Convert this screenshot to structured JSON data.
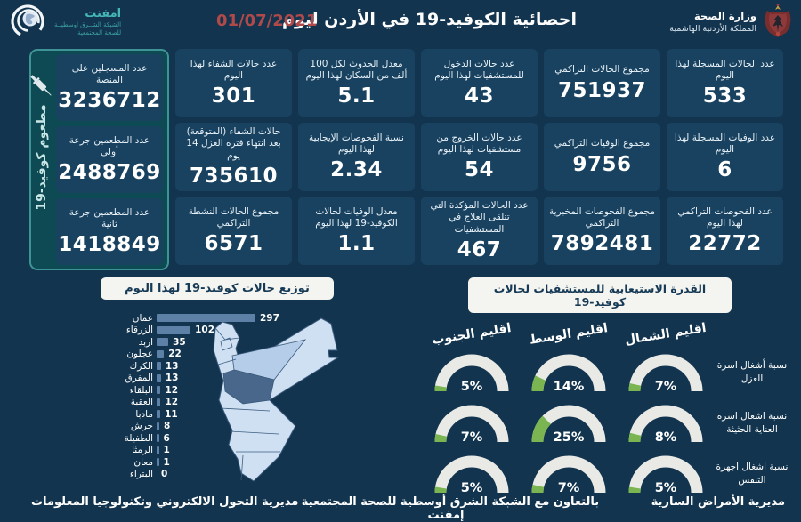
{
  "accent_colors": {
    "background": "#12344e",
    "card": "#18425f",
    "vaccine_panel_bg": "#0d4a53",
    "vaccine_panel_border": "#3e9494",
    "bar": "#5d80a6",
    "gauge_green": "#7ab551",
    "gauge_track": "#e9eae6",
    "date_red": "#b04a4a",
    "emphnet_teal": "#45b5b5"
  },
  "header": {
    "title": "احصائية الكوفيد-19 في الأردن ليوم",
    "date": "01/07/2021",
    "ministry": {
      "name": "وزارة الصحة",
      "country": "المملكة الأردنية الهاشمية"
    },
    "emphnet": {
      "name": "امفنت",
      "line1": "الشبكة الشــرق اوسطيــة",
      "line2": "للصحة المجتمعية"
    }
  },
  "vaccine_panel": {
    "vertical_label": "مطعوم كوفيد-19",
    "cards": [
      {
        "label": "عدد المسجلين على المنصة",
        "value": "3236712"
      },
      {
        "label": "عدد المطعمين جرعة أولى",
        "value": "2488769"
      },
      {
        "label": "عدد المطعمين جرعة ثانية",
        "value": "1418849"
      }
    ]
  },
  "stats": {
    "columns": [
      {
        "cards": [
          {
            "label": "عدد الحالات المسجلة لهذا اليوم",
            "value": "533"
          },
          {
            "label": "عدد الوفيات المسجلة لهذا اليوم",
            "value": "6"
          },
          {
            "label": "عدد الفحوصات التراكمي لهذا اليوم",
            "value": "22772"
          }
        ]
      },
      {
        "cards": [
          {
            "label": "مجموع الحالات التراكمي",
            "value": "751937"
          },
          {
            "label": "مجموع الوفيات التراكمي",
            "value": "9756"
          },
          {
            "label": "مجموع الفحوصات المخبرية التراكمي",
            "value": "7892481"
          }
        ]
      },
      {
        "cards": [
          {
            "label": "عدد حالات الدخول للمستشفيات لهذا اليوم",
            "value": "43"
          },
          {
            "label": "عدد حالات الخروج من مستشفيات لهذا اليوم",
            "value": "54"
          },
          {
            "label": "عدد الحالات المؤكدة التي تتلقى العلاج في المستشفيات",
            "value": "467"
          }
        ]
      },
      {
        "cards": [
          {
            "label": "معدل الحدوث لكل 100 ألف من السكان لهذا اليوم",
            "value": "5.1"
          },
          {
            "label": "نسبة الفحوصات الإيجابية لهذا اليوم",
            "value": "2.34"
          },
          {
            "label": "معدل الوفيات لحالات الكوفيد-19 لهذا اليوم",
            "value": "1.1"
          }
        ]
      },
      {
        "cards": [
          {
            "label": "عدد حالات الشفاء لهذا اليوم",
            "value": "301"
          },
          {
            "label": "حالات الشفاء (المتوقعة) بعد انتهاء فترة العزل 14 يوم",
            "value": "735610"
          },
          {
            "label": "مجموع الحالات النشطة التراكمي",
            "value": "6571"
          }
        ]
      }
    ]
  },
  "chart_data": [
    {
      "type": "bar",
      "orientation": "horizontal",
      "title": "توزيع حالات كوفيد-19 لهذا اليوم",
      "categories": [
        "عمان",
        "الزرقاء",
        "اربد",
        "عجلون",
        "الكرك",
        "المفرق",
        "البلقاء",
        "العقبة",
        "مادبا",
        "جرش",
        "الطفيلة",
        "الرمثا",
        "معان",
        "البتراء"
      ],
      "values": [
        297,
        102,
        35,
        22,
        13,
        13,
        12,
        12,
        11,
        8,
        6,
        1,
        1,
        0
      ],
      "xlim": [
        0,
        300
      ],
      "legend": "none"
    },
    {
      "type": "gauge",
      "title": "القدرة الاستيعابية للمستشفيات لحالات كوفيد-19",
      "unit": "%",
      "columns": [
        "اقليم الشمال",
        "اقليم الوسط",
        "اقليم الجنوب"
      ],
      "rows": [
        {
          "label": "نسبة أشغال اسرة العزل",
          "values": [
            7,
            14,
            5
          ]
        },
        {
          "label": "نسبة اشغال اسرة العناية الحثيثة",
          "values": [
            8,
            25,
            7
          ]
        },
        {
          "label": "نسبة اشغال اجهزة التنفس",
          "values": [
            5,
            7,
            5
          ]
        }
      ]
    }
  ],
  "footer": {
    "right": "مديرية الأمراض السارية",
    "center": "بالتعاون مع الشبكة الشرق أوسطية للصحة المجتمعية - إمفنت",
    "left": "مديرية التحول الالكتروني وتكنولوجيا المعلومات"
  }
}
